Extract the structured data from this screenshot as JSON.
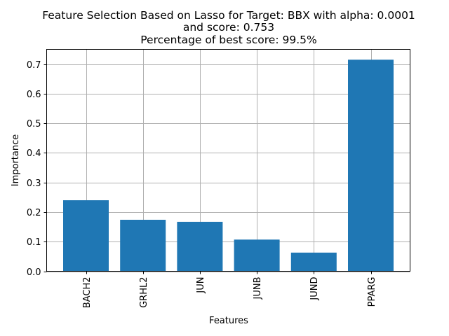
{
  "chart_data": {
    "type": "bar",
    "title_lines": [
      "Feature Selection Based on Lasso for Target: BBX with alpha: 0.0001",
      "and score: 0.753",
      "Percentage of best score: 99.5%"
    ],
    "xlabel": "Features",
    "ylabel": "Importance",
    "categories": [
      "BACH2",
      "GRHL2",
      "JUN",
      "JUNB",
      "JUND",
      "PPARG"
    ],
    "values": [
      0.24,
      0.174,
      0.167,
      0.107,
      0.063,
      0.715
    ],
    "ylim": [
      0,
      0.75
    ],
    "yticks": [
      0.0,
      0.1,
      0.2,
      0.3,
      0.4,
      0.5,
      0.6,
      0.7
    ],
    "ytick_labels": [
      "0.0",
      "0.1",
      "0.2",
      "0.3",
      "0.4",
      "0.5",
      "0.6",
      "0.7"
    ],
    "grid": true,
    "bar_color": "#1f77b4"
  }
}
